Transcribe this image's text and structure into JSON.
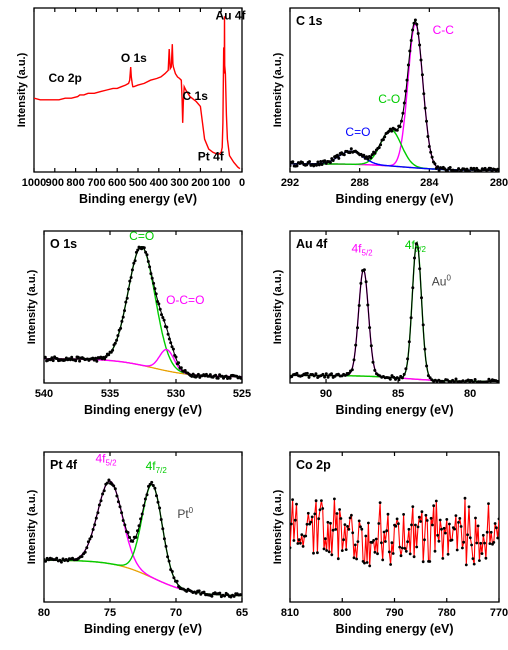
{
  "chart_data": [
    {
      "type": "line",
      "title": "",
      "xlabel": "Binding energy (eV)",
      "ylabel": "Intensity (a.u.)",
      "xlim": [
        1000,
        0
      ],
      "ylim": [
        0,
        100
      ],
      "xticks": [
        1000,
        900,
        800,
        700,
        600,
        500,
        400,
        300,
        200,
        100,
        0
      ],
      "colors": {
        "data": "#ff0000"
      },
      "annotations": [
        {
          "text": "Co 2p",
          "x": 850,
          "y": 55,
          "color": "#000000"
        },
        {
          "text": "O 1s",
          "x": 520,
          "y": 67,
          "color": "#000000"
        },
        {
          "text": "C 1s",
          "x": 225,
          "y": 44,
          "color": "#000000"
        },
        {
          "text": "Au 4f",
          "x": 55,
          "y": 93,
          "color": "#000000"
        },
        {
          "text": "Pt 4f",
          "x": 150,
          "y": 7,
          "color": "#000000"
        }
      ],
      "series": [
        {
          "x": [
            1000,
            970,
            940,
            910,
            880,
            850,
            820,
            790,
            780,
            760,
            740,
            710,
            680,
            650,
            620,
            600,
            580,
            560,
            545,
            540,
            535,
            532,
            528,
            525,
            520,
            500,
            470,
            440,
            410,
            390,
            370,
            355,
            350,
            345,
            340,
            335,
            332,
            330,
            325,
            320,
            310,
            300,
            292,
            288,
            285,
            282,
            278,
            270,
            250,
            220,
            200,
            190,
            180,
            160,
            140,
            120,
            110,
            100,
            95,
            92,
            88,
            85,
            84,
            83,
            80,
            75,
            70,
            60,
            40,
            20,
            10
          ],
          "values": [
            45,
            44,
            44,
            44,
            44,
            45,
            45,
            46,
            47,
            47,
            48,
            48,
            49,
            50,
            51,
            51,
            52,
            53,
            54,
            56,
            64,
            58,
            54,
            52,
            52,
            53,
            54,
            56,
            57,
            58,
            60,
            62,
            75,
            63,
            64,
            78,
            66,
            64,
            62,
            60,
            58,
            57,
            56,
            44,
            30,
            42,
            52,
            50,
            46,
            43,
            40,
            30,
            20,
            14,
            12,
            11,
            11,
            12,
            15,
            30,
            76,
            60,
            95,
            65,
            60,
            35,
            20,
            10,
            6,
            3,
            2
          ]
        }
      ]
    },
    {
      "type": "line",
      "title": "C 1s",
      "xlabel": "Binding energy (eV)",
      "ylabel": "Intensity (a.u.)",
      "xlim": [
        292,
        280
      ],
      "ylim": [
        0,
        100
      ],
      "xticks": [
        292,
        288,
        284,
        280
      ],
      "colors": {
        "data": "#000000",
        "C-C": "#ff00ff",
        "C-O": "#00cc00",
        "C=O": "#0000ff",
        "background": "#e8a000"
      },
      "annotations": [
        {
          "text": "C-C",
          "x": 283.2,
          "y": 84,
          "color": "#ff00ff"
        },
        {
          "text": "C-O",
          "x": 286.3,
          "y": 42,
          "color": "#00cc00"
        },
        {
          "text": "C=O",
          "x": 288.1,
          "y": 22,
          "color": "#0000ff"
        }
      ],
      "peaks": [
        {
          "name": "C-C",
          "center": 284.8,
          "height": 88,
          "fwhm": 1.0
        },
        {
          "name": "C-O",
          "center": 286.2,
          "height": 22,
          "fwhm": 1.4
        },
        {
          "name": "C=O",
          "center": 288.5,
          "height": 8,
          "fwhm": 1.6
        }
      ],
      "background": {
        "left": 5,
        "right": 1
      },
      "data_points": {
        "x_min": 292,
        "x_max": 280,
        "step": 0.08
      }
    },
    {
      "type": "line",
      "title": "O 1s",
      "xlabel": "Binding energy (eV)",
      "ylabel": "Intensity (a.u.)",
      "xlim": [
        540,
        525
      ],
      "ylim": [
        0,
        100
      ],
      "xticks": [
        540,
        535,
        530,
        525
      ],
      "colors": {
        "data": "#000000",
        "C=O": "#00cc00",
        "O-C=O": "#ff00ff",
        "background": "#e8a000"
      },
      "annotations": [
        {
          "text": "C=O",
          "x": 532.6,
          "y": 94,
          "color": "#00cc00"
        },
        {
          "text": "O-C=O",
          "x": 529.3,
          "y": 52,
          "color": "#ff00ff"
        }
      ],
      "peaks": [
        {
          "name": "C=O",
          "center": 532.6,
          "height": 78,
          "fwhm": 2.4
        },
        {
          "name": "O-C=O",
          "center": 530.7,
          "height": 14,
          "fwhm": 1.3
        }
      ],
      "background": {
        "left": 16,
        "right": 4
      },
      "data_points": {
        "x_min": 540,
        "x_max": 525,
        "step": 0.1
      }
    },
    {
      "type": "line",
      "title": "Au 4f",
      "xlabel": "Binding energy (eV)",
      "ylabel": "Intensity (a.u.)",
      "xlim": [
        92.5,
        78
      ],
      "ylim": [
        0,
        100
      ],
      "xticks": [
        90,
        85,
        80
      ],
      "colors": {
        "data": "#000000",
        "4f5/2": "#ff00ff",
        "4f7/2": "#00cc00",
        "background": "#e8a000"
      },
      "annotations": [
        {
          "text": "4f",
          "sub": "5/2",
          "x": 87.5,
          "y": 86,
          "color": "#ff00ff"
        },
        {
          "text": "4f",
          "sub": "7/2",
          "x": 83.8,
          "y": 88,
          "color": "#00cc00"
        },
        {
          "text": "Au",
          "sup": "0",
          "x": 82.0,
          "y": 64,
          "color": "#444444"
        }
      ],
      "peaks": [
        {
          "name": "4f5/2",
          "center": 87.4,
          "height": 70,
          "fwhm": 0.8
        },
        {
          "name": "4f7/2",
          "center": 83.7,
          "height": 90,
          "fwhm": 0.75
        }
      ],
      "background": {
        "left": 5,
        "right": 1
      },
      "data_points": {
        "x_min": 92.5,
        "x_max": 78,
        "step": 0.12
      }
    },
    {
      "type": "line",
      "title": "Pt 4f",
      "xlabel": "Binding energy (eV)",
      "ylabel": "Intensity (a.u.)",
      "xlim": [
        80,
        65
      ],
      "ylim": [
        0,
        100
      ],
      "xticks": [
        80,
        75,
        70,
        65
      ],
      "colors": {
        "data": "#000000",
        "4f5/2": "#ff00ff",
        "4f7/2": "#00cc00",
        "background": "#e8a000"
      },
      "annotations": [
        {
          "text": "4f",
          "sub": "5/2",
          "x": 75.3,
          "y": 93,
          "color": "#ff00ff"
        },
        {
          "text": "4f",
          "sub": "7/2",
          "x": 71.5,
          "y": 88,
          "color": "#00cc00"
        },
        {
          "text": "Pt",
          "sup": "0",
          "x": 69.3,
          "y": 56,
          "color": "#444444"
        }
      ],
      "peaks": [
        {
          "name": "4f5/2",
          "center": 75.0,
          "height": 55,
          "fwhm": 2.2
        },
        {
          "name": "4f7/2",
          "center": 71.8,
          "height": 62,
          "fwhm": 1.8
        }
      ],
      "background": {
        "left": 28,
        "right": 4
      },
      "data_points": {
        "x_min": 80,
        "x_max": 65,
        "step": 0.12
      }
    },
    {
      "type": "line",
      "title": "Co 2p",
      "xlabel": "Binding energy (eV)",
      "ylabel": "Intensity (a.u.)",
      "xlim": [
        810,
        770
      ],
      "ylim": [
        0,
        100
      ],
      "xticks": [
        810,
        800,
        790,
        780,
        770
      ],
      "colors": {
        "data": "#ff0000",
        "markers": "#000000"
      },
      "data_points": {
        "x_min": 810,
        "x_max": 770,
        "step": 0.25,
        "baseline": 45,
        "noise": 18
      }
    }
  ]
}
